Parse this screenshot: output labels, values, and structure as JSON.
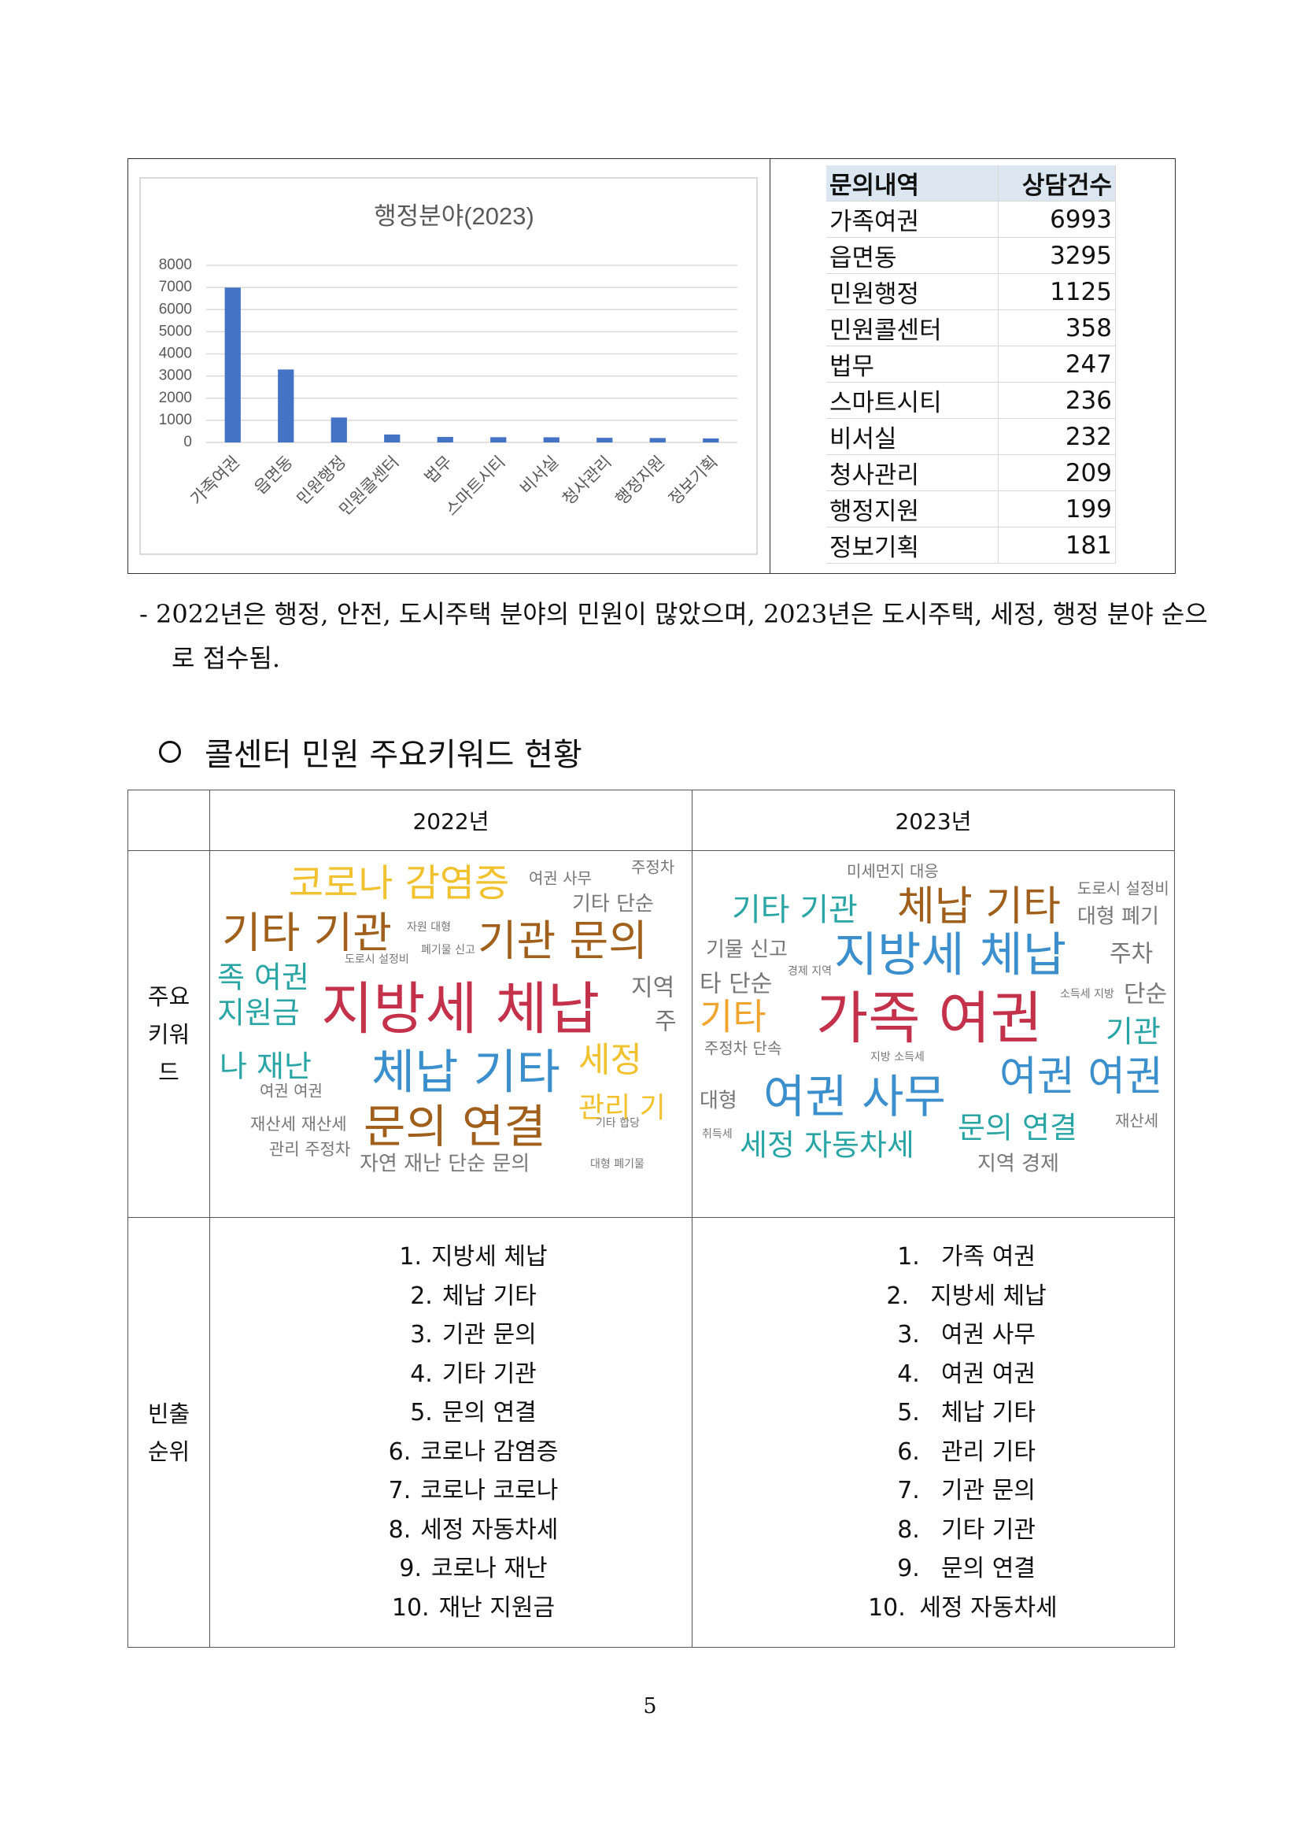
{
  "chart_data": {
    "type": "bar",
    "title": "행정분야(2023)",
    "categories": [
      "가족여권",
      "읍면동",
      "민원행정",
      "민원콜센터",
      "법무",
      "스마트시티",
      "비서실",
      "청사관리",
      "행정지원",
      "정보기획"
    ],
    "values": [
      6993,
      3295,
      1125,
      358,
      247,
      236,
      232,
      209,
      199,
      181
    ],
    "color": "#4472c4",
    "ylim": [
      0,
      8000
    ],
    "yticks": [
      0,
      1000,
      2000,
      3000,
      4000,
      5000,
      6000,
      7000,
      8000
    ],
    "grid": true
  },
  "summary_table": {
    "header": [
      "문의내역",
      "상담건수"
    ],
    "rows": [
      [
        "가족여권",
        "6993"
      ],
      [
        "읍면동",
        "3295"
      ],
      [
        "민원행정",
        "1125"
      ],
      [
        "민원콜센터",
        "358"
      ],
      [
        "법무",
        "247"
      ],
      [
        "스마트시티",
        "236"
      ],
      [
        "비서실",
        "232"
      ],
      [
        "청사관리",
        "209"
      ],
      [
        "행정지원",
        "199"
      ],
      [
        "정보기획",
        "181"
      ]
    ]
  },
  "paragraph": "- 2022년은 행정, 안전, 도시주택 분야의 민원이 많았으며, 2023년은 도시주택, 세정, 행정 분야 순으로 접수됨.",
  "section_title": "콜센터 민원 주요키워드 현황",
  "keyword_table": {
    "columns": [
      "2022년",
      "2023년"
    ],
    "row_labels": [
      "주요키워드",
      "빈출 순위"
    ],
    "wordclouds": [
      [
        {
          "text": "코로나 감염증",
          "color": "#f2c12e"
        },
        {
          "text": "여권 사무",
          "color": "#777777"
        },
        {
          "text": "주정차",
          "color": "#777777"
        },
        {
          "text": "기타 단순",
          "color": "#777777"
        },
        {
          "text": "기타 기관",
          "color": "#a0601c"
        },
        {
          "text": "자원 대형",
          "color": "#777777"
        },
        {
          "text": "폐기물 신고",
          "color": "#777777"
        },
        {
          "text": "기관 문의",
          "color": "#a0601c"
        },
        {
          "text": "도로시 설정비",
          "color": "#777777"
        },
        {
          "text": "족 여권",
          "color": "#2aa5a5"
        },
        {
          "text": "지원금",
          "color": "#2aa5a5"
        },
        {
          "text": "지방세 체납",
          "color": "#c4314b"
        },
        {
          "text": "지역",
          "color": "#777777"
        },
        {
          "text": "주",
          "color": "#777777"
        },
        {
          "text": "나 재난",
          "color": "#2aa5a5"
        },
        {
          "text": "여권 여권",
          "color": "#777777"
        },
        {
          "text": "체납 기타",
          "color": "#3b8fcc"
        },
        {
          "text": "세정",
          "color": "#f2c12e"
        },
        {
          "text": "관리 기",
          "color": "#f2c12e"
        },
        {
          "text": "기타 합당",
          "color": "#777777"
        },
        {
          "text": "문의 연결",
          "color": "#a0601c"
        },
        {
          "text": "재산세 재산세",
          "color": "#777777"
        },
        {
          "text": "관리 주정차",
          "color": "#777777"
        },
        {
          "text": "자연 재난 단순 문의",
          "color": "#777777"
        },
        {
          "text": "대형 폐기물",
          "color": "#777777"
        }
      ],
      [
        {
          "text": "미세먼지 대응",
          "color": "#777777"
        },
        {
          "text": "도로시 설정비",
          "color": "#777777"
        },
        {
          "text": "기타 기관",
          "color": "#2aa5a5"
        },
        {
          "text": "체납 기타",
          "color": "#a0601c"
        },
        {
          "text": "대형 폐기",
          "color": "#777777"
        },
        {
          "text": "기물 신고",
          "color": "#777777"
        },
        {
          "text": "지방세 체납",
          "color": "#3b8fcc"
        },
        {
          "text": "주차",
          "color": "#777777"
        },
        {
          "text": "경제 지역",
          "color": "#777777"
        },
        {
          "text": "타 단순",
          "color": "#777777"
        },
        {
          "text": "소득세 지방",
          "color": "#777777"
        },
        {
          "text": "단순",
          "color": "#777777"
        },
        {
          "text": "기타",
          "color": "#f2a52e"
        },
        {
          "text": "가족 여권",
          "color": "#c4314b"
        },
        {
          "text": "기관",
          "color": "#2aa5a5"
        },
        {
          "text": "주정차 단속",
          "color": "#777777"
        },
        {
          "text": "지방 소득세",
          "color": "#777777"
        },
        {
          "text": "대형",
          "color": "#777777"
        },
        {
          "text": "여권 사무",
          "color": "#3b8fcc"
        },
        {
          "text": "여권 여권",
          "color": "#3b8fcc"
        },
        {
          "text": "취득세",
          "color": "#777777"
        },
        {
          "text": "문의 연결",
          "color": "#2aa5a5"
        },
        {
          "text": "재산세",
          "color": "#777777"
        },
        {
          "text": "세정 자동차세",
          "color": "#2aa5a5"
        },
        {
          "text": "지역 경제",
          "color": "#777777"
        }
      ]
    ],
    "rankings": [
      [
        {
          "rank": "1.",
          "keyword": "지방세 체납"
        },
        {
          "rank": "2.",
          "keyword": "체납 기타"
        },
        {
          "rank": "3.",
          "keyword": "기관 문의"
        },
        {
          "rank": "4.",
          "keyword": "기타 기관"
        },
        {
          "rank": "5.",
          "keyword": "문의 연결"
        },
        {
          "rank": "6.",
          "keyword": "코로나 감염증"
        },
        {
          "rank": "7.",
          "keyword": "코로나 코로나"
        },
        {
          "rank": "8.",
          "keyword": "세정 자동차세"
        },
        {
          "rank": "9.",
          "keyword": "코로나 재난"
        },
        {
          "rank": "10.",
          "keyword": "재난 지원금"
        }
      ],
      [
        {
          "rank": "1.",
          "keyword": "가족 여권"
        },
        {
          "rank": "2.",
          "keyword": "지방세 체납"
        },
        {
          "rank": "3.",
          "keyword": "여권 사무"
        },
        {
          "rank": "4.",
          "keyword": "여권 여권"
        },
        {
          "rank": "5.",
          "keyword": "체납 기타"
        },
        {
          "rank": "6.",
          "keyword": "관리 기타"
        },
        {
          "rank": "7.",
          "keyword": "기관 문의"
        },
        {
          "rank": "8.",
          "keyword": "기타 기관"
        },
        {
          "rank": "9.",
          "keyword": "문의 연결"
        },
        {
          "rank": "10.",
          "keyword": "세정 자동차세"
        }
      ]
    ]
  },
  "page_number": "5"
}
